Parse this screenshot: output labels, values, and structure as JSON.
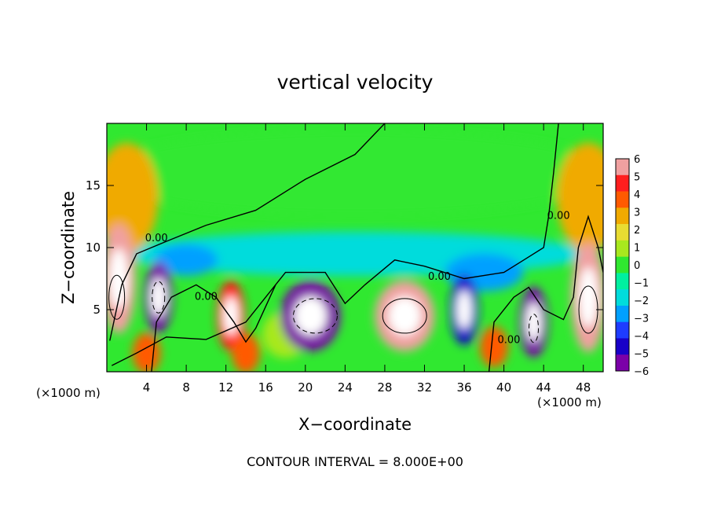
{
  "chart_data": {
    "type": "heatmap",
    "title": "vertical velocity",
    "xlabel": "X−coordinate",
    "ylabel": "Z−coordinate",
    "x_unit_left": "(×1000 m)",
    "x_unit_right": "(×1000 m)",
    "footer": "CONTOUR INTERVAL = 8.000E+00",
    "xlim": [
      0,
      50
    ],
    "ylim": [
      0,
      20
    ],
    "x_ticks": [
      "4",
      "8",
      "12",
      "16",
      "20",
      "24",
      "28",
      "32",
      "36",
      "40",
      "44",
      "48"
    ],
    "y_ticks": [
      "5",
      "10",
      "15"
    ],
    "colorbar": {
      "range": [
        -6,
        6
      ],
      "ticks": [
        "6",
        "5",
        "4",
        "3",
        "2",
        "1",
        "0",
        "−1",
        "−2",
        "−3",
        "−4",
        "−5",
        "−6"
      ],
      "colors": [
        "#7b00a8",
        "#1800c8",
        "#1e3cff",
        "#00a0ff",
        "#00dcdc",
        "#00f0a0",
        "#30e830",
        "#a8e81e",
        "#e8dc32",
        "#f0aa00",
        "#ff5a00",
        "#ff1e1e",
        "#f0a0a0"
      ]
    },
    "contour_labels": [
      {
        "text": "0.00",
        "x": 5.0,
        "z": 10.5
      },
      {
        "text": "0.00",
        "x": 10.0,
        "z": 5.8
      },
      {
        "text": "0.00",
        "x": 33.5,
        "z": 7.4
      },
      {
        "text": "0.00",
        "x": 40.5,
        "z": 2.3
      },
      {
        "text": "0.00",
        "x": 45.5,
        "z": 12.3
      }
    ],
    "features": [
      {
        "name": "updraft-left-edge",
        "x": 1.2,
        "z": 7.5,
        "value": 5.5
      },
      {
        "name": "downdraft-1",
        "x": 5.2,
        "z": 6.0,
        "value": -5.5
      },
      {
        "name": "updraft-1",
        "x": 12.5,
        "z": 4.5,
        "value": 5.0
      },
      {
        "name": "updraft-2",
        "x": 4.0,
        "z": 1.5,
        "value": 4.0
      },
      {
        "name": "updraft-3",
        "x": 14.0,
        "z": 1.5,
        "value": 3.5
      },
      {
        "name": "downdraft-2",
        "x": 20.5,
        "z": 4.5,
        "value": -5.5
      },
      {
        "name": "updraft-4",
        "x": 30.0,
        "z": 4.5,
        "value": 5.5
      },
      {
        "name": "downdraft-3",
        "x": 36.0,
        "z": 5.0,
        "value": -5.0
      },
      {
        "name": "updraft-5",
        "x": 39.0,
        "z": 2.0,
        "value": 4.0
      },
      {
        "name": "downdraft-4",
        "x": 43.0,
        "z": 4.0,
        "value": -5.5
      },
      {
        "name": "updraft-right-edge",
        "x": 48.5,
        "z": 6.0,
        "value": 5.5
      }
    ]
  }
}
